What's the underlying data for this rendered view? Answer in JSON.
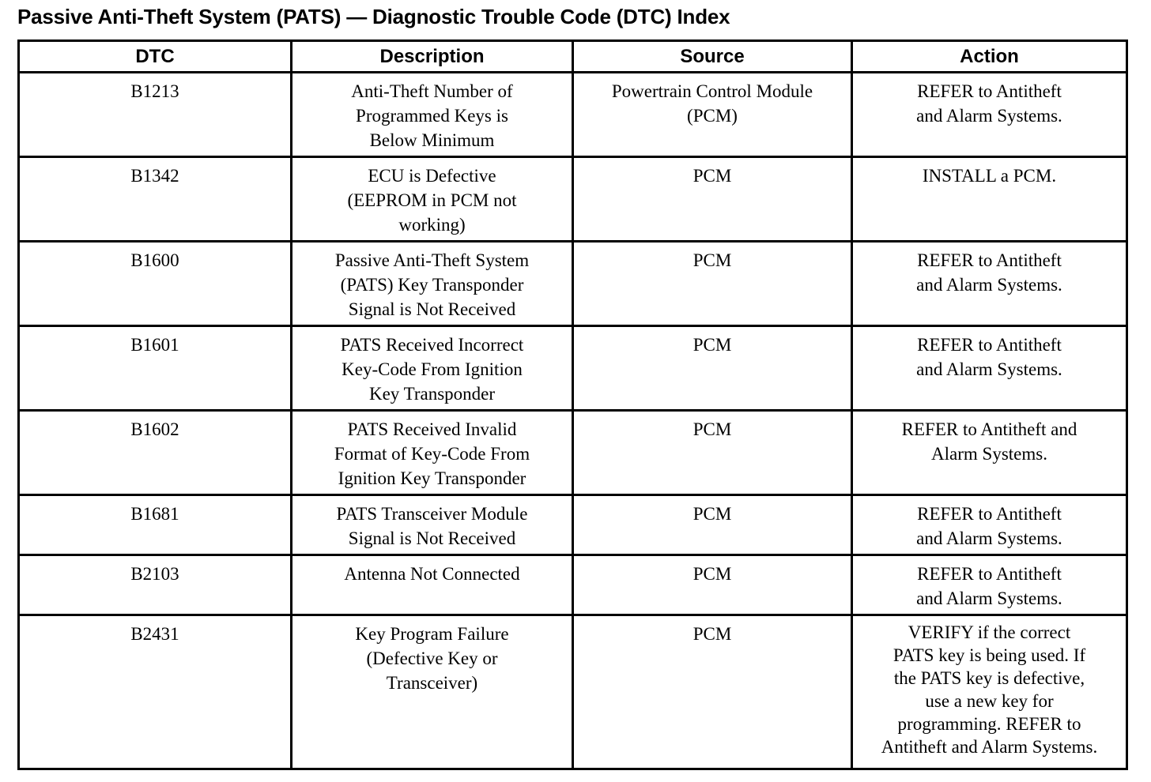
{
  "page_title": "Passive Anti-Theft System (PATS) — Diagnostic Trouble Code (DTC) Index",
  "table": {
    "columns": [
      "DTC",
      "Description",
      "Source",
      "Action"
    ],
    "rows": [
      {
        "dtc": "B1213",
        "description": "Anti-Theft Number of\nProgrammed Keys is\nBelow Minimum",
        "source": "Powertrain Control Module\n(PCM)",
        "action": "REFER to Antitheft\nand Alarm Systems."
      },
      {
        "dtc": "B1342",
        "description": "ECU is Defective\n(EEPROM in PCM not\nworking)",
        "source": "PCM",
        "action": "INSTALL a PCM."
      },
      {
        "dtc": "B1600",
        "description": "Passive Anti-Theft System\n(PATS) Key Transponder\nSignal is Not Received",
        "source": "PCM",
        "action": "REFER to Antitheft\nand Alarm Systems."
      },
      {
        "dtc": "B1601",
        "description": "PATS Received Incorrect\nKey-Code From Ignition\nKey Transponder",
        "source": "PCM",
        "action": "REFER to Antitheft\nand Alarm Systems."
      },
      {
        "dtc": "B1602",
        "description": "PATS Received Invalid\nFormat of Key-Code From\nIgnition Key Transponder",
        "source": "PCM",
        "action": "REFER to Antitheft and\nAlarm Systems."
      },
      {
        "dtc": "B1681",
        "description": "PATS Transceiver Module\nSignal is Not Received",
        "source": "PCM",
        "action": "REFER to Antitheft\nand Alarm Systems."
      },
      {
        "dtc": "B2103",
        "description": "Antenna Not Connected",
        "source": "PCM",
        "action": "REFER to Antitheft\nand Alarm Systems."
      },
      {
        "dtc": "B2431",
        "description": "Key Program Failure\n(Defective Key or\nTransceiver)",
        "source": "PCM",
        "action": "VERIFY if the correct\nPATS key is being used. If\nthe PATS key is defective,\nuse a new key for\nprogramming. REFER to\nAntitheft and Alarm Systems."
      }
    ]
  }
}
